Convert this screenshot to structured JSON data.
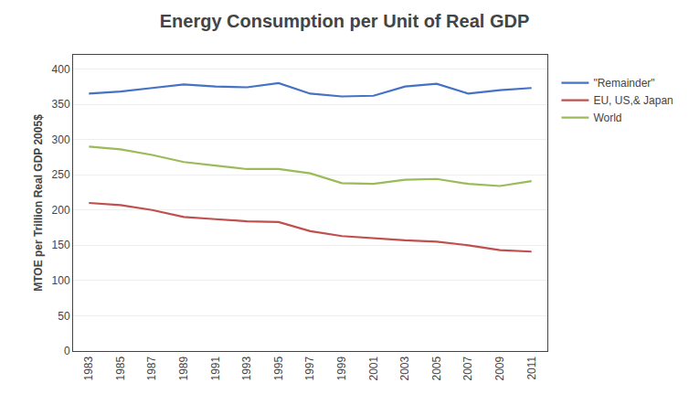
{
  "chart_data": {
    "type": "line",
    "title": "Energy Consumption per Unit of Real GDP",
    "ylabel": "MTOE per Trillion Real GDP 2005$",
    "x": [
      1983,
      1985,
      1987,
      1989,
      1991,
      1993,
      1995,
      1997,
      1999,
      2001,
      2003,
      2005,
      2007,
      2009,
      2011
    ],
    "series": [
      {
        "name": "\"Remainder\"",
        "color": "#4472C4",
        "values": [
          365,
          368,
          373,
          378,
          375,
          374,
          380,
          365,
          361,
          362,
          375,
          379,
          365,
          370,
          373
        ]
      },
      {
        "name": "EU, US,& Japan",
        "color": "#C0504D",
        "values": [
          210,
          207,
          200,
          190,
          187,
          184,
          183,
          170,
          163,
          160,
          157,
          155,
          150,
          143,
          141
        ]
      },
      {
        "name": "World",
        "color": "#9BBB59",
        "values": [
          290,
          286,
          278,
          268,
          263,
          258,
          258,
          252,
          238,
          237,
          243,
          244,
          237,
          234,
          241
        ]
      }
    ],
    "xlim": [
      1982,
      2012
    ],
    "xticks": [
      1983,
      1985,
      1987,
      1989,
      1991,
      1993,
      1995,
      1997,
      1999,
      2001,
      2003,
      2005,
      2007,
      2009,
      2011
    ],
    "ylim": [
      0,
      420
    ],
    "yticks": [
      0,
      50,
      100,
      150,
      200,
      250,
      300,
      350,
      400
    ],
    "grid": "y",
    "legend": "right"
  }
}
